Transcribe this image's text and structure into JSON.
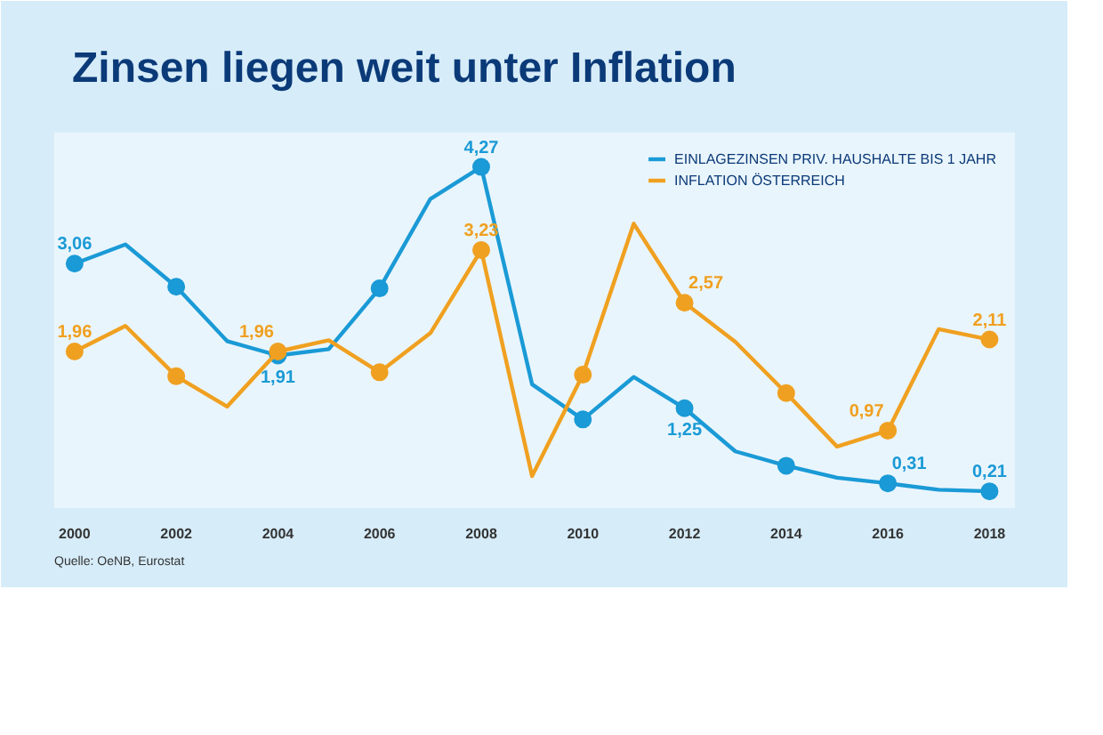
{
  "chart_data": {
    "type": "line",
    "title": "Zinsen liegen weit unter Inflation",
    "x": [
      2000,
      2001,
      2002,
      2003,
      2004,
      2005,
      2006,
      2007,
      2008,
      2009,
      2010,
      2011,
      2012,
      2013,
      2014,
      2015,
      2016,
      2017,
      2018
    ],
    "xlim": [
      1999.6,
      2018.5
    ],
    "xticks": [
      2000,
      2002,
      2004,
      2006,
      2008,
      2010,
      2012,
      2014,
      2016,
      2018
    ],
    "ylim": [
      0,
      4.7
    ],
    "tick_labels": "x",
    "grid": false,
    "legend": "top right",
    "marker": "circle",
    "line_style": "solid",
    "series": [
      {
        "name": "EINLAGEZINSEN PRIV. HAUSHALTE BIS 1 JAHR",
        "color": "#1a9ad6",
        "values": [
          3.06,
          3.3,
          2.77,
          2.09,
          1.91,
          1.99,
          2.75,
          3.87,
          4.27,
          1.55,
          1.11,
          1.64,
          1.25,
          0.71,
          0.53,
          0.38,
          0.31,
          0.23,
          0.21
        ],
        "value_labels": [
          "3,06",
          null,
          null,
          null,
          "1,91",
          null,
          null,
          null,
          "4,27",
          null,
          null,
          null,
          "1,25",
          null,
          null,
          null,
          "0,31",
          null,
          "0,21"
        ]
      },
      {
        "name": "INFLATION ÖSTERREICH",
        "color": "#f0a020",
        "values": [
          1.96,
          2.28,
          1.65,
          1.27,
          1.96,
          2.1,
          1.7,
          2.19,
          3.23,
          0.4,
          1.67,
          3.56,
          2.57,
          2.08,
          1.44,
          0.77,
          0.97,
          2.24,
          2.11
        ],
        "value_labels": [
          "1,96",
          null,
          null,
          null,
          "1,96",
          null,
          null,
          null,
          "3,23",
          null,
          null,
          null,
          "2,57",
          null,
          null,
          null,
          "0,97",
          null,
          "2,11"
        ]
      }
    ],
    "annotations": [
      "Quelle: OeNB, Eurostat"
    ]
  }
}
